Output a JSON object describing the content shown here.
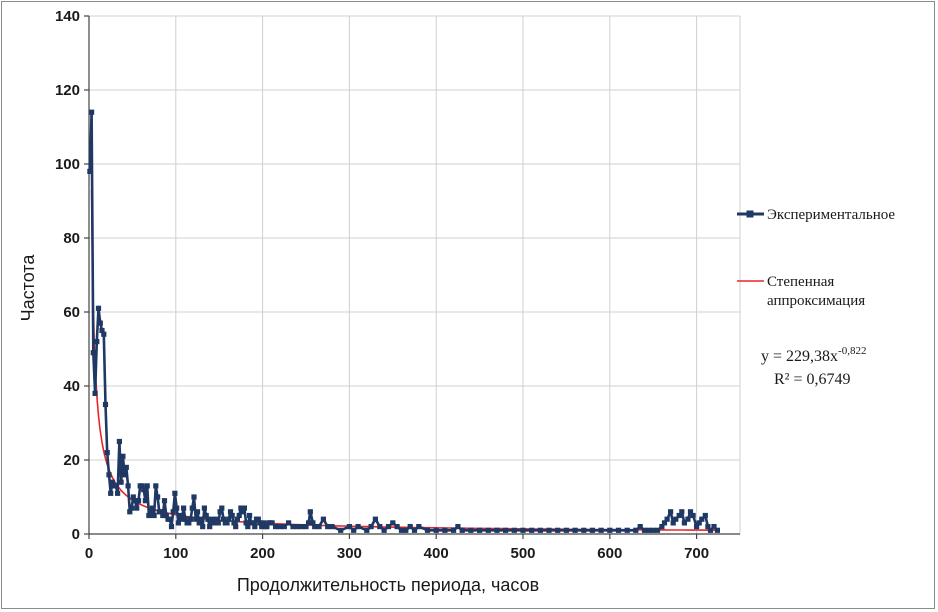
{
  "chart_data": {
    "type": "line",
    "title": "",
    "xlabel": "Продолжительность периода, часов",
    "ylabel": "Частота",
    "xlim": [
      0,
      750
    ],
    "ylim": [
      0,
      140
    ],
    "xticks": [
      0,
      100,
      200,
      300,
      400,
      500,
      600,
      700
    ],
    "yticks": [
      0,
      20,
      40,
      60,
      80,
      100,
      120,
      140
    ],
    "grid": true,
    "legend_position": "right",
    "colors": {
      "experimental": "#1f3864",
      "fit": "#e8262a"
    },
    "series": [
      {
        "name": "Экспериментальное",
        "style": "line-with-square-markers",
        "x": [
          1,
          3,
          5,
          7,
          9,
          11,
          13,
          15,
          17,
          19,
          21,
          23,
          25,
          27,
          29,
          31,
          33,
          35,
          37,
          39,
          41,
          43,
          45,
          47,
          49,
          51,
          53,
          55,
          57,
          59,
          61,
          63,
          65,
          67,
          69,
          71,
          73,
          75,
          77,
          79,
          81,
          83,
          85,
          87,
          89,
          91,
          93,
          95,
          97,
          99,
          101,
          103,
          105,
          107,
          109,
          111,
          113,
          115,
          117,
          119,
          121,
          123,
          125,
          127,
          129,
          131,
          133,
          135,
          137,
          139,
          141,
          143,
          145,
          147,
          149,
          151,
          153,
          155,
          157,
          159,
          161,
          163,
          165,
          167,
          169,
          171,
          173,
          175,
          177,
          179,
          181,
          183,
          185,
          187,
          189,
          191,
          193,
          195,
          197,
          199,
          201,
          203,
          205,
          207,
          209,
          211,
          215,
          220,
          225,
          230,
          235,
          240,
          245,
          250,
          253,
          255,
          258,
          260,
          265,
          270,
          275,
          280,
          290,
          300,
          305,
          310,
          320,
          325,
          330,
          335,
          340,
          345,
          350,
          355,
          360,
          365,
          370,
          375,
          380,
          390,
          400,
          410,
          420,
          425,
          430,
          440,
          450,
          460,
          470,
          480,
          490,
          500,
          510,
          520,
          530,
          540,
          550,
          560,
          570,
          580,
          590,
          600,
          610,
          620,
          630,
          635,
          640,
          645,
          650,
          655,
          660,
          663,
          666,
          670,
          673,
          676,
          680,
          683,
          686,
          690,
          693,
          696,
          700,
          703,
          706,
          710,
          713,
          716,
          720,
          724
        ],
        "y": [
          98,
          114,
          49,
          38,
          52,
          61,
          57,
          55,
          54,
          35,
          22,
          16,
          11,
          14,
          13,
          13,
          11,
          25,
          14,
          21,
          16,
          18,
          13,
          6,
          7,
          10,
          9,
          7,
          9,
          13,
          13,
          12,
          9,
          13,
          5,
          6,
          7,
          5,
          13,
          10,
          6,
          6,
          5,
          9,
          5,
          4,
          4,
          2,
          6,
          11,
          7,
          3,
          5,
          4,
          7,
          4,
          3,
          3,
          4,
          7,
          10,
          4,
          6,
          3,
          4,
          2,
          7,
          5,
          4,
          2,
          4,
          3,
          3,
          4,
          3,
          6,
          7,
          4,
          3,
          3,
          4,
          6,
          5,
          3,
          2,
          4,
          5,
          7,
          6,
          7,
          3,
          2,
          5,
          3,
          3,
          2,
          4,
          4,
          3,
          2,
          3,
          2,
          2,
          3,
          3,
          3,
          2,
          2,
          2,
          3,
          2,
          2,
          2,
          2,
          3,
          6,
          3,
          2,
          2,
          4,
          2,
          2,
          1,
          2,
          1,
          2,
          1,
          2,
          4,
          2,
          1,
          2,
          3,
          2,
          1,
          1,
          2,
          1,
          2,
          1,
          1,
          1,
          1,
          2,
          1,
          1,
          1,
          1,
          1,
          1,
          1,
          1,
          1,
          1,
          1,
          1,
          1,
          1,
          1,
          1,
          1,
          1,
          1,
          1,
          1,
          2,
          1,
          1,
          1,
          1,
          2,
          3,
          4,
          6,
          3,
          4,
          5,
          6,
          3,
          4,
          6,
          5,
          2,
          3,
          4,
          5,
          2,
          1,
          2,
          1
        ]
      },
      {
        "name": "Степенная аппроксимация",
        "style": "line",
        "formula": "y = 229,38x^-0,822",
        "coef_a": 229.38,
        "exponent": -0.822,
        "x_range": [
          3,
          725
        ]
      }
    ]
  },
  "legend": {
    "experimental_label": "Экспериментальное",
    "fit_label_line1": "Степенная",
    "fit_label_line2": "аппроксимация"
  },
  "equation": {
    "prefix": "y = 229,38x",
    "exponent": "-0,822",
    "r2": "R² = 0,6749"
  }
}
